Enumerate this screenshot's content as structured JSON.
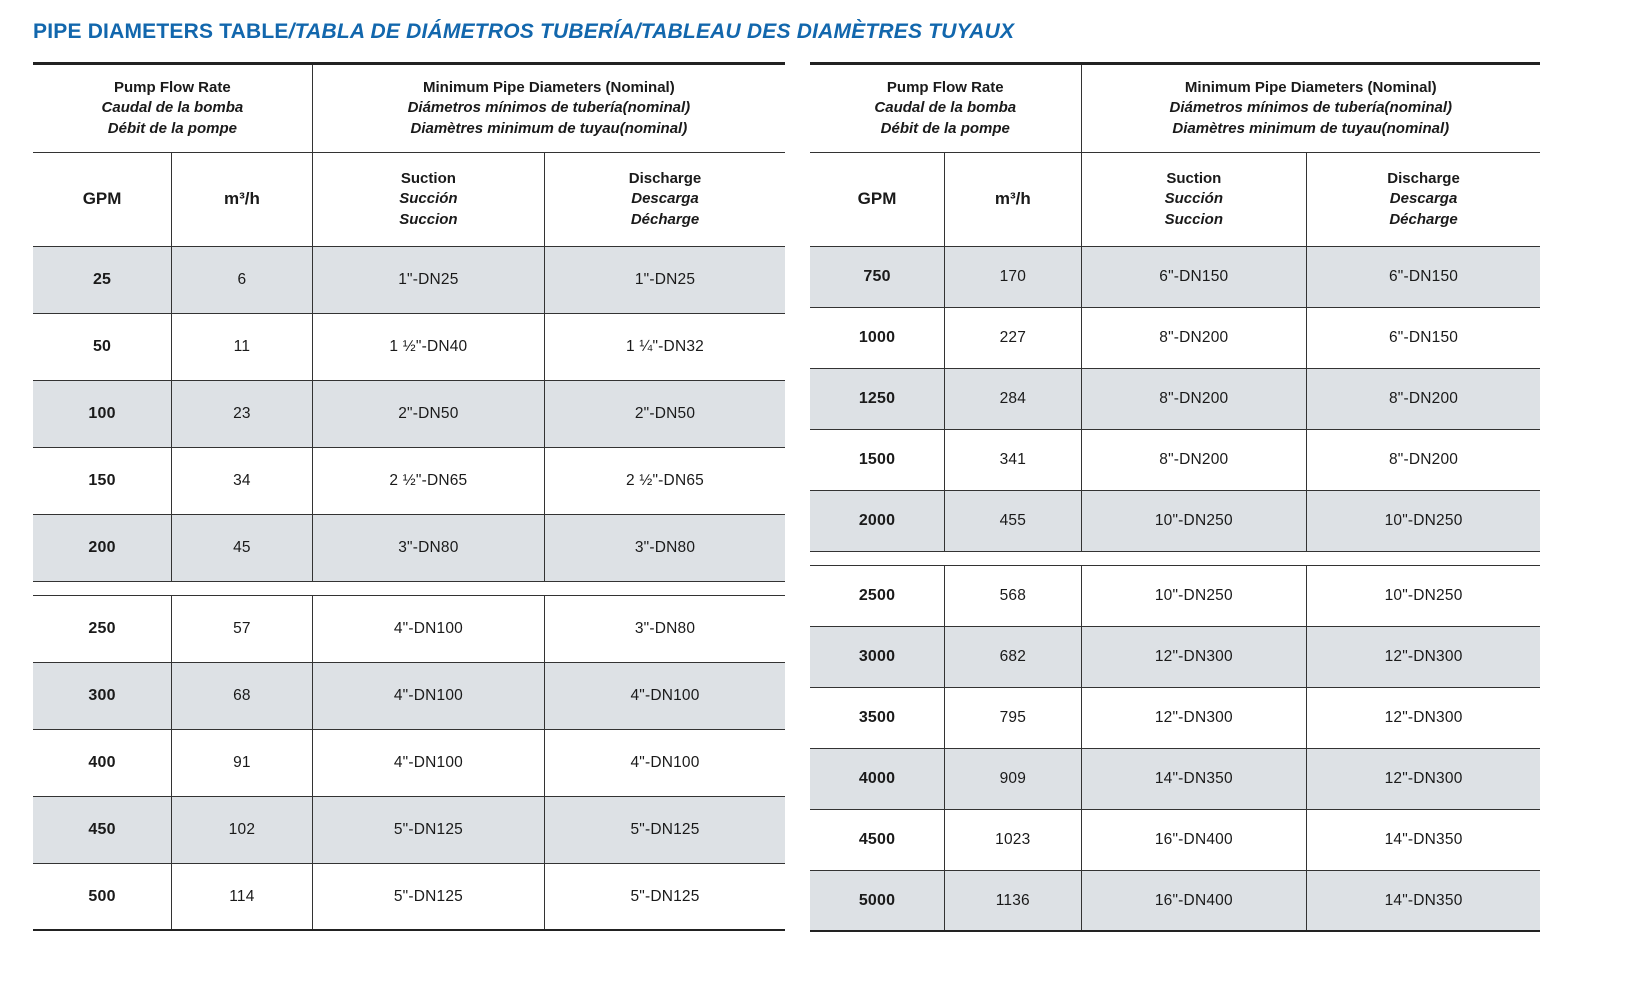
{
  "title": {
    "part1": "PIPE DIAMETERS TABLE",
    "part2": "/TABLA DE DIÁMETROS TUBERÍA/TABLEAU DES DIAMÈTRES TUYAUX"
  },
  "colors": {
    "title_blue": "#1267ad",
    "row_shade": "#dde1e5"
  },
  "headers": {
    "pump_flow_rate": {
      "en": "Pump Flow Rate",
      "es": "Caudal de la bomba",
      "fr": "Débit de la pompe"
    },
    "min_pipe": {
      "en": "Minimum Pipe Diameters (Nominal)",
      "es": "Diámetros mínimos de tubería(nominal)",
      "fr": "Diamètres minimum de tuyau(nominal)"
    },
    "gpm": "GPM",
    "m3h": "m³/h",
    "suction": {
      "en": "Suction",
      "es": "Succión",
      "fr": "Succion"
    },
    "discharge": {
      "en": "Discharge",
      "es": "Descarga",
      "fr": "Décharge"
    }
  },
  "left_table": {
    "group1": [
      {
        "gpm": "25",
        "m3h": "6",
        "suction": "1\"-DN25",
        "discharge": "1\"-DN25"
      },
      {
        "gpm": "50",
        "m3h": "11",
        "suction": "1 ½\"-DN40",
        "discharge": "1 ¼\"-DN32"
      },
      {
        "gpm": "100",
        "m3h": "23",
        "suction": "2\"-DN50",
        "discharge": "2\"-DN50"
      },
      {
        "gpm": "150",
        "m3h": "34",
        "suction": "2 ½\"-DN65",
        "discharge": "2 ½\"-DN65"
      },
      {
        "gpm": "200",
        "m3h": "45",
        "suction": "3\"-DN80",
        "discharge": "3\"-DN80"
      }
    ],
    "group2": [
      {
        "gpm": "250",
        "m3h": "57",
        "suction": "4\"-DN100",
        "discharge": "3\"-DN80"
      },
      {
        "gpm": "300",
        "m3h": "68",
        "suction": "4\"-DN100",
        "discharge": "4\"-DN100"
      },
      {
        "gpm": "400",
        "m3h": "91",
        "suction": "4\"-DN100",
        "discharge": "4\"-DN100"
      },
      {
        "gpm": "450",
        "m3h": "102",
        "suction": "5\"-DN125",
        "discharge": "5\"-DN125"
      },
      {
        "gpm": "500",
        "m3h": "114",
        "suction": "5\"-DN125",
        "discharge": "5\"-DN125"
      }
    ]
  },
  "right_table": {
    "group1": [
      {
        "gpm": "750",
        "m3h": "170",
        "suction": "6\"-DN150",
        "discharge": "6\"-DN150"
      },
      {
        "gpm": "1000",
        "m3h": "227",
        "suction": "8\"-DN200",
        "discharge": "6\"-DN150"
      },
      {
        "gpm": "1250",
        "m3h": "284",
        "suction": "8\"-DN200",
        "discharge": "8\"-DN200"
      },
      {
        "gpm": "1500",
        "m3h": "341",
        "suction": "8\"-DN200",
        "discharge": "8\"-DN200"
      },
      {
        "gpm": "2000",
        "m3h": "455",
        "suction": "10\"-DN250",
        "discharge": "10\"-DN250"
      }
    ],
    "group2": [
      {
        "gpm": "2500",
        "m3h": "568",
        "suction": "10\"-DN250",
        "discharge": "10\"-DN250"
      },
      {
        "gpm": "3000",
        "m3h": "682",
        "suction": "12\"-DN300",
        "discharge": "12\"-DN300"
      },
      {
        "gpm": "3500",
        "m3h": "795",
        "suction": "12\"-DN300",
        "discharge": "12\"-DN300"
      },
      {
        "gpm": "4000",
        "m3h": "909",
        "suction": "14\"-DN350",
        "discharge": "12\"-DN300"
      },
      {
        "gpm": "4500",
        "m3h": "1023",
        "suction": "16\"-DN400",
        "discharge": "14\"-DN350"
      },
      {
        "gpm": "5000",
        "m3h": "1136",
        "suction": "16\"-DN400",
        "discharge": "14\"-DN350"
      }
    ]
  }
}
